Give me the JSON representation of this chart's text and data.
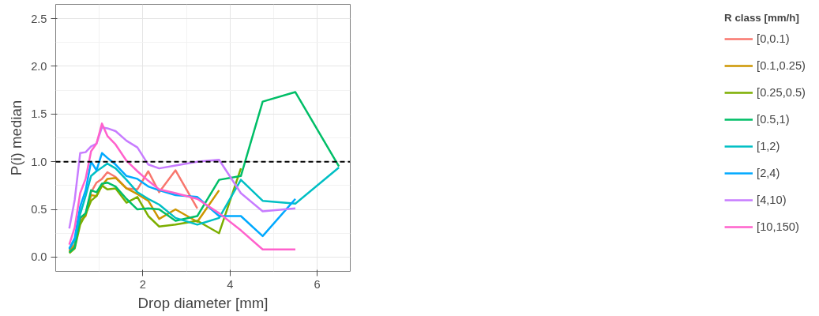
{
  "chart_data": {
    "type": "line",
    "xlabel": "Drop diameter [mm]",
    "ylabel": "P(i) median",
    "legend_title": "R class [mm/h]",
    "x": [
      0.312,
      0.437,
      0.562,
      0.687,
      0.812,
      0.937,
      1.062,
      1.187,
      1.375,
      1.625,
      1.875,
      2.125,
      2.375,
      2.75,
      3.25,
      3.75,
      4.25,
      4.75,
      5.5,
      6.5
    ],
    "xlim": [
      0.0,
      6.76
    ],
    "ylim": [
      -0.15,
      2.65
    ],
    "xticks": [
      2,
      4,
      6
    ],
    "yticks": [
      {
        "value": 0,
        "label": "0.0"
      },
      {
        "value": 0.5,
        "label": "0.5"
      },
      {
        "value": 1,
        "label": "1.0"
      },
      {
        "value": 1.5,
        "label": "1.5"
      },
      {
        "value": 2,
        "label": "2.0"
      },
      {
        "value": 2.5,
        "label": "2.5"
      }
    ],
    "grid": true,
    "legend": "right",
    "line_style": "solid",
    "marker": "none",
    "ref_lines": [
      {
        "axis": "y",
        "value": 1,
        "color": "#000000",
        "line_style": "dashed"
      }
    ],
    "series": [
      {
        "name": "[0,0.1)",
        "color": "#F8766D",
        "values": [
          0.07,
          0.13,
          0.4,
          0.45,
          0.68,
          0.78,
          0.82,
          0.89,
          0.84,
          0.72,
          0.71,
          0.9,
          0.68,
          0.91,
          0.51,
          null,
          null,
          null,
          null,
          null
        ]
      },
      {
        "name": "[0.1,0.25)",
        "color": "#CD9600",
        "values": [
          0.06,
          0.12,
          0.37,
          0.43,
          0.65,
          0.64,
          0.75,
          0.82,
          0.83,
          0.72,
          0.66,
          0.59,
          0.4,
          0.5,
          0.37,
          0.7,
          null,
          null,
          null,
          null
        ]
      },
      {
        "name": "[0.25,0.5)",
        "color": "#7CAE00",
        "values": [
          0.04,
          0.09,
          0.34,
          0.45,
          0.59,
          0.64,
          0.75,
          0.71,
          0.72,
          0.57,
          0.63,
          0.43,
          0.32,
          0.34,
          0.38,
          0.25,
          0.93,
          null,
          null,
          null
        ]
      },
      {
        "name": "[0.5,1)",
        "color": "#00BE67",
        "values": [
          0.05,
          0.1,
          0.41,
          0.46,
          0.7,
          0.68,
          0.77,
          0.78,
          0.74,
          0.61,
          0.5,
          0.51,
          0.5,
          0.38,
          0.43,
          0.81,
          0.85,
          1.63,
          1.73,
          0.95
        ]
      },
      {
        "name": "[1,2)",
        "color": "#00BFC4",
        "values": [
          0.08,
          0.18,
          0.45,
          0.64,
          0.85,
          0.9,
          0.94,
          0.98,
          0.93,
          0.81,
          0.68,
          0.61,
          0.55,
          0.41,
          0.34,
          0.41,
          0.81,
          0.59,
          0.56,
          0.94
        ]
      },
      {
        "name": "[2,4)",
        "color": "#00A9FF",
        "values": [
          0.09,
          0.2,
          0.53,
          0.7,
          1.0,
          0.91,
          1.09,
          1.04,
          0.97,
          0.85,
          0.82,
          0.74,
          0.7,
          0.65,
          0.63,
          0.43,
          0.43,
          0.22,
          0.61,
          null
        ]
      },
      {
        "name": "[4,10)",
        "color": "#C77CFF",
        "values": [
          0.3,
          0.6,
          1.09,
          1.1,
          1.16,
          1.19,
          1.36,
          1.35,
          1.32,
          1.22,
          1.15,
          0.97,
          0.93,
          0.96,
          1.0,
          1.02,
          0.67,
          0.48,
          0.51,
          null
        ]
      },
      {
        "name": "[10,150)",
        "color": "#FF61CC",
        "values": [
          0.13,
          0.31,
          0.67,
          0.82,
          1.11,
          1.19,
          1.4,
          1.27,
          1.18,
          1.01,
          0.9,
          0.8,
          0.71,
          0.67,
          0.61,
          0.46,
          0.28,
          0.08,
          0.08,
          null
        ]
      }
    ]
  }
}
